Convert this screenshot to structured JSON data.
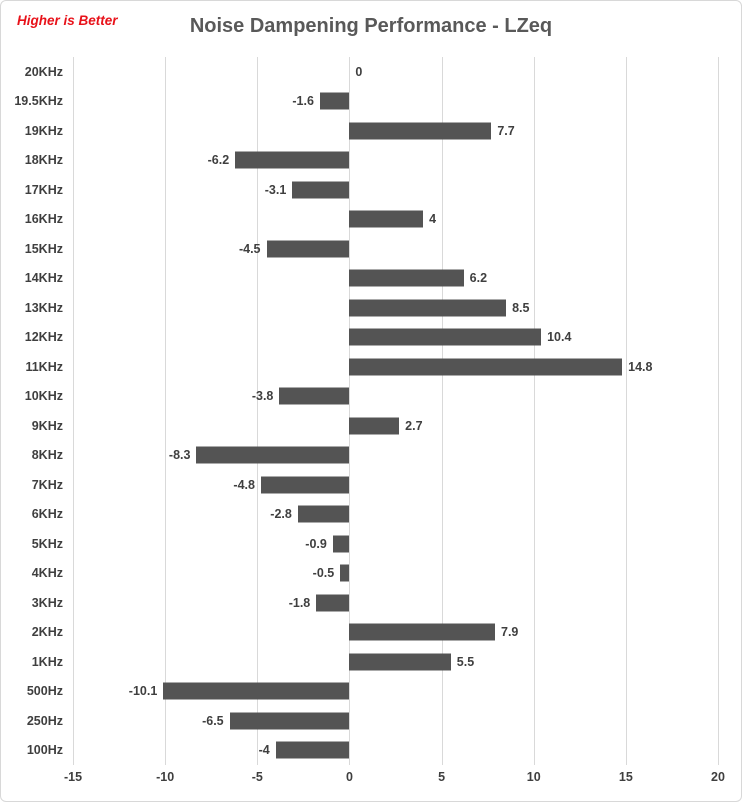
{
  "annotation": {
    "text": "Higher is Better",
    "color": "#e8121a"
  },
  "title": "Noise Dampening Performance - LZeq",
  "title_color": "#595959",
  "chart_data": {
    "type": "bar",
    "orientation": "horizontal",
    "title": "Noise Dampening Performance - LZeq",
    "xlabel": "",
    "ylabel": "",
    "categories": [
      "20KHz",
      "19.5KHz",
      "19KHz",
      "18KHz",
      "17KHz",
      "16KHz",
      "15KHz",
      "14KHz",
      "13KHz",
      "12KHz",
      "11KHz",
      "10KHz",
      "9KHz",
      "8KHz",
      "7KHz",
      "6KHz",
      "5KHz",
      "4KHz",
      "3KHz",
      "2KHz",
      "1KHz",
      "500Hz",
      "250Hz",
      "100Hz"
    ],
    "values": [
      0,
      -1.6,
      7.7,
      -6.2,
      -3.1,
      4,
      -4.5,
      6.2,
      8.5,
      10.4,
      14.8,
      -3.8,
      2.7,
      -8.3,
      -4.8,
      -2.8,
      -0.9,
      -0.5,
      -1.8,
      7.9,
      5.5,
      -10.1,
      -6.5,
      -4
    ],
    "data_labels": [
      "0",
      "-1.6",
      "7.7",
      "-6.2",
      "-3.1",
      "4",
      "-4.5",
      "6.2",
      "8.5",
      "10.4",
      "14.8",
      "-3.8",
      "2.7",
      "-8.3",
      "-4.8",
      "-2.8",
      "-0.9",
      "-0.5",
      "-1.8",
      "7.9",
      "5.5",
      "-10.1",
      "-6.5",
      "-4"
    ],
    "xlim": [
      -15,
      20
    ],
    "xticks": [
      -15,
      -10,
      -5,
      0,
      5,
      10,
      15,
      20
    ],
    "xtick_labels": [
      "-15",
      "-10",
      "-5",
      "0",
      "5",
      "10",
      "15",
      "20"
    ],
    "grid": true,
    "legend": false,
    "bar_color": "#545454",
    "gridline_color": "#d9d9d9",
    "label_color": "#3f3f3f"
  }
}
